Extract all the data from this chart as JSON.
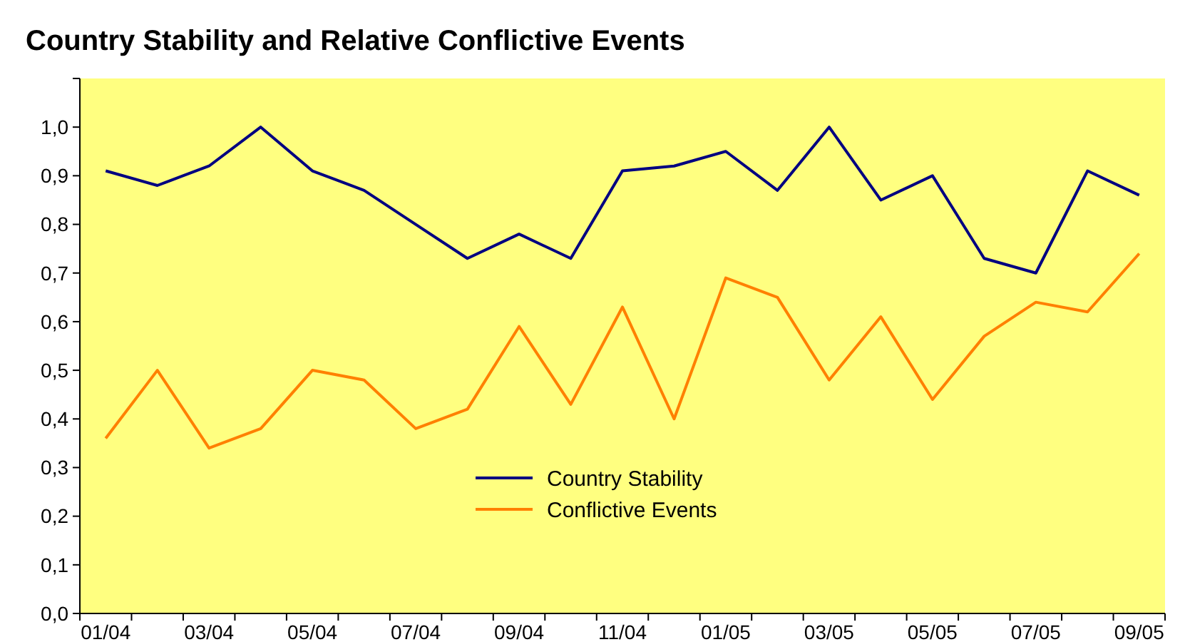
{
  "chart_data": {
    "type": "line",
    "title": "Country Stability and Relative Conflictive Events",
    "categories": [
      "01/04",
      null,
      "03/04",
      null,
      "05/04",
      null,
      "07/04",
      null,
      "09/04",
      null,
      "11/04",
      null,
      "01/05",
      null,
      "03/05",
      null,
      "05/05",
      null,
      "07/05",
      null,
      "09/05"
    ],
    "series": [
      {
        "name": "Country Stability",
        "color": "#000080",
        "values": [
          0.91,
          0.88,
          0.92,
          1.0,
          0.91,
          0.87,
          0.8,
          0.73,
          0.78,
          0.73,
          0.91,
          0.92,
          0.95,
          0.87,
          1.0,
          0.85,
          0.9,
          0.73,
          0.7,
          0.91,
          0.86
        ]
      },
      {
        "name": "Conflictive Events",
        "color": "#ff8000",
        "values": [
          0.36,
          0.5,
          0.34,
          0.38,
          0.5,
          0.48,
          0.38,
          0.42,
          0.59,
          0.43,
          0.63,
          0.4,
          0.69,
          0.65,
          0.48,
          0.61,
          0.44,
          0.57,
          0.64,
          0.62,
          0.74
        ]
      }
    ],
    "ylim": [
      0,
      1.1
    ],
    "yticks": [
      {
        "value": 0,
        "label": "0,0"
      },
      {
        "value": 0.1,
        "label": "0,1"
      },
      {
        "value": 0.2,
        "label": "0,2"
      },
      {
        "value": 0.3,
        "label": "0,3"
      },
      {
        "value": 0.4,
        "label": "0,4"
      },
      {
        "value": 0.5,
        "label": "0,5"
      },
      {
        "value": 0.6,
        "label": "0,6"
      },
      {
        "value": 0.7,
        "label": "0,7"
      },
      {
        "value": 0.8,
        "label": "0,8"
      },
      {
        "value": 0.9,
        "label": "0,9"
      },
      {
        "value": 1.0,
        "label": "1,0"
      },
      {
        "value": 1.1,
        "label": null
      }
    ],
    "legend": "bottom",
    "grid": false,
    "marker": "none",
    "line_style": "solid"
  }
}
